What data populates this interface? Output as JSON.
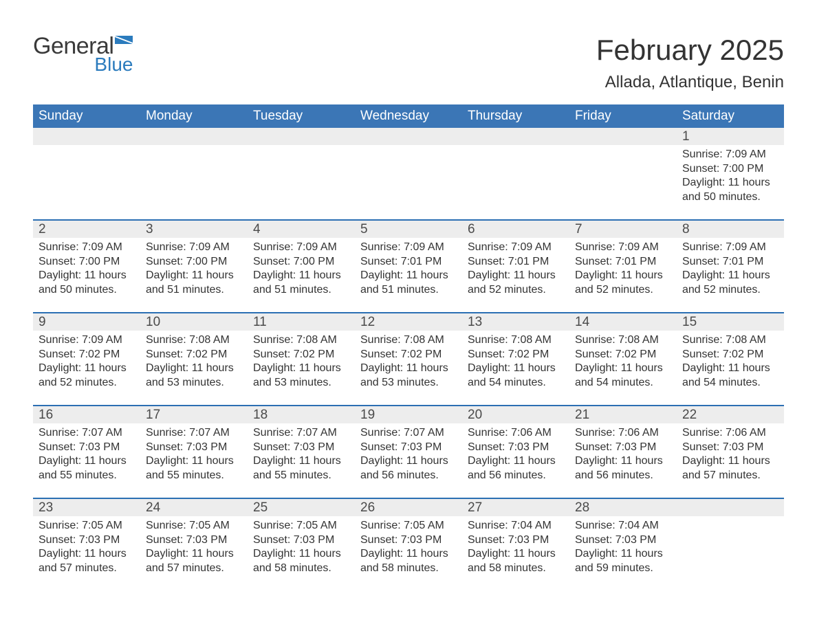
{
  "logo": {
    "text_general": "General",
    "text_blue": "Blue",
    "flag_color": "#2b7bbd",
    "general_color": "#3a3a3a"
  },
  "title": {
    "month": "February 2025",
    "location": "Allada, Atlantique, Benin"
  },
  "colors": {
    "header_bg": "#3b76b6",
    "header_text": "#ffffff",
    "week_border": "#2b6fb3",
    "dayrow_bg": "#ededed",
    "text": "#333333",
    "page_bg": "#ffffff"
  },
  "typography": {
    "title_fontsize": 42,
    "location_fontsize": 24,
    "header_fontsize": 19,
    "daynum_fontsize": 19,
    "body_fontsize": 16
  },
  "columns": [
    "Sunday",
    "Monday",
    "Tuesday",
    "Wednesday",
    "Thursday",
    "Friday",
    "Saturday"
  ],
  "weeks": [
    {
      "days": [
        null,
        null,
        null,
        null,
        null,
        null,
        {
          "n": "1",
          "sunrise": "Sunrise: 7:09 AM",
          "sunset": "Sunset: 7:00 PM",
          "daylight": "Daylight: 11 hours and 50 minutes."
        }
      ]
    },
    {
      "days": [
        {
          "n": "2",
          "sunrise": "Sunrise: 7:09 AM",
          "sunset": "Sunset: 7:00 PM",
          "daylight": "Daylight: 11 hours and 50 minutes."
        },
        {
          "n": "3",
          "sunrise": "Sunrise: 7:09 AM",
          "sunset": "Sunset: 7:00 PM",
          "daylight": "Daylight: 11 hours and 51 minutes."
        },
        {
          "n": "4",
          "sunrise": "Sunrise: 7:09 AM",
          "sunset": "Sunset: 7:00 PM",
          "daylight": "Daylight: 11 hours and 51 minutes."
        },
        {
          "n": "5",
          "sunrise": "Sunrise: 7:09 AM",
          "sunset": "Sunset: 7:01 PM",
          "daylight": "Daylight: 11 hours and 51 minutes."
        },
        {
          "n": "6",
          "sunrise": "Sunrise: 7:09 AM",
          "sunset": "Sunset: 7:01 PM",
          "daylight": "Daylight: 11 hours and 52 minutes."
        },
        {
          "n": "7",
          "sunrise": "Sunrise: 7:09 AM",
          "sunset": "Sunset: 7:01 PM",
          "daylight": "Daylight: 11 hours and 52 minutes."
        },
        {
          "n": "8",
          "sunrise": "Sunrise: 7:09 AM",
          "sunset": "Sunset: 7:01 PM",
          "daylight": "Daylight: 11 hours and 52 minutes."
        }
      ]
    },
    {
      "days": [
        {
          "n": "9",
          "sunrise": "Sunrise: 7:09 AM",
          "sunset": "Sunset: 7:02 PM",
          "daylight": "Daylight: 11 hours and 52 minutes."
        },
        {
          "n": "10",
          "sunrise": "Sunrise: 7:08 AM",
          "sunset": "Sunset: 7:02 PM",
          "daylight": "Daylight: 11 hours and 53 minutes."
        },
        {
          "n": "11",
          "sunrise": "Sunrise: 7:08 AM",
          "sunset": "Sunset: 7:02 PM",
          "daylight": "Daylight: 11 hours and 53 minutes."
        },
        {
          "n": "12",
          "sunrise": "Sunrise: 7:08 AM",
          "sunset": "Sunset: 7:02 PM",
          "daylight": "Daylight: 11 hours and 53 minutes."
        },
        {
          "n": "13",
          "sunrise": "Sunrise: 7:08 AM",
          "sunset": "Sunset: 7:02 PM",
          "daylight": "Daylight: 11 hours and 54 minutes."
        },
        {
          "n": "14",
          "sunrise": "Sunrise: 7:08 AM",
          "sunset": "Sunset: 7:02 PM",
          "daylight": "Daylight: 11 hours and 54 minutes."
        },
        {
          "n": "15",
          "sunrise": "Sunrise: 7:08 AM",
          "sunset": "Sunset: 7:02 PM",
          "daylight": "Daylight: 11 hours and 54 minutes."
        }
      ]
    },
    {
      "days": [
        {
          "n": "16",
          "sunrise": "Sunrise: 7:07 AM",
          "sunset": "Sunset: 7:03 PM",
          "daylight": "Daylight: 11 hours and 55 minutes."
        },
        {
          "n": "17",
          "sunrise": "Sunrise: 7:07 AM",
          "sunset": "Sunset: 7:03 PM",
          "daylight": "Daylight: 11 hours and 55 minutes."
        },
        {
          "n": "18",
          "sunrise": "Sunrise: 7:07 AM",
          "sunset": "Sunset: 7:03 PM",
          "daylight": "Daylight: 11 hours and 55 minutes."
        },
        {
          "n": "19",
          "sunrise": "Sunrise: 7:07 AM",
          "sunset": "Sunset: 7:03 PM",
          "daylight": "Daylight: 11 hours and 56 minutes."
        },
        {
          "n": "20",
          "sunrise": "Sunrise: 7:06 AM",
          "sunset": "Sunset: 7:03 PM",
          "daylight": "Daylight: 11 hours and 56 minutes."
        },
        {
          "n": "21",
          "sunrise": "Sunrise: 7:06 AM",
          "sunset": "Sunset: 7:03 PM",
          "daylight": "Daylight: 11 hours and 56 minutes."
        },
        {
          "n": "22",
          "sunrise": "Sunrise: 7:06 AM",
          "sunset": "Sunset: 7:03 PM",
          "daylight": "Daylight: 11 hours and 57 minutes."
        }
      ]
    },
    {
      "days": [
        {
          "n": "23",
          "sunrise": "Sunrise: 7:05 AM",
          "sunset": "Sunset: 7:03 PM",
          "daylight": "Daylight: 11 hours and 57 minutes."
        },
        {
          "n": "24",
          "sunrise": "Sunrise: 7:05 AM",
          "sunset": "Sunset: 7:03 PM",
          "daylight": "Daylight: 11 hours and 57 minutes."
        },
        {
          "n": "25",
          "sunrise": "Sunrise: 7:05 AM",
          "sunset": "Sunset: 7:03 PM",
          "daylight": "Daylight: 11 hours and 58 minutes."
        },
        {
          "n": "26",
          "sunrise": "Sunrise: 7:05 AM",
          "sunset": "Sunset: 7:03 PM",
          "daylight": "Daylight: 11 hours and 58 minutes."
        },
        {
          "n": "27",
          "sunrise": "Sunrise: 7:04 AM",
          "sunset": "Sunset: 7:03 PM",
          "daylight": "Daylight: 11 hours and 58 minutes."
        },
        {
          "n": "28",
          "sunrise": "Sunrise: 7:04 AM",
          "sunset": "Sunset: 7:03 PM",
          "daylight": "Daylight: 11 hours and 59 minutes."
        },
        null
      ]
    }
  ]
}
